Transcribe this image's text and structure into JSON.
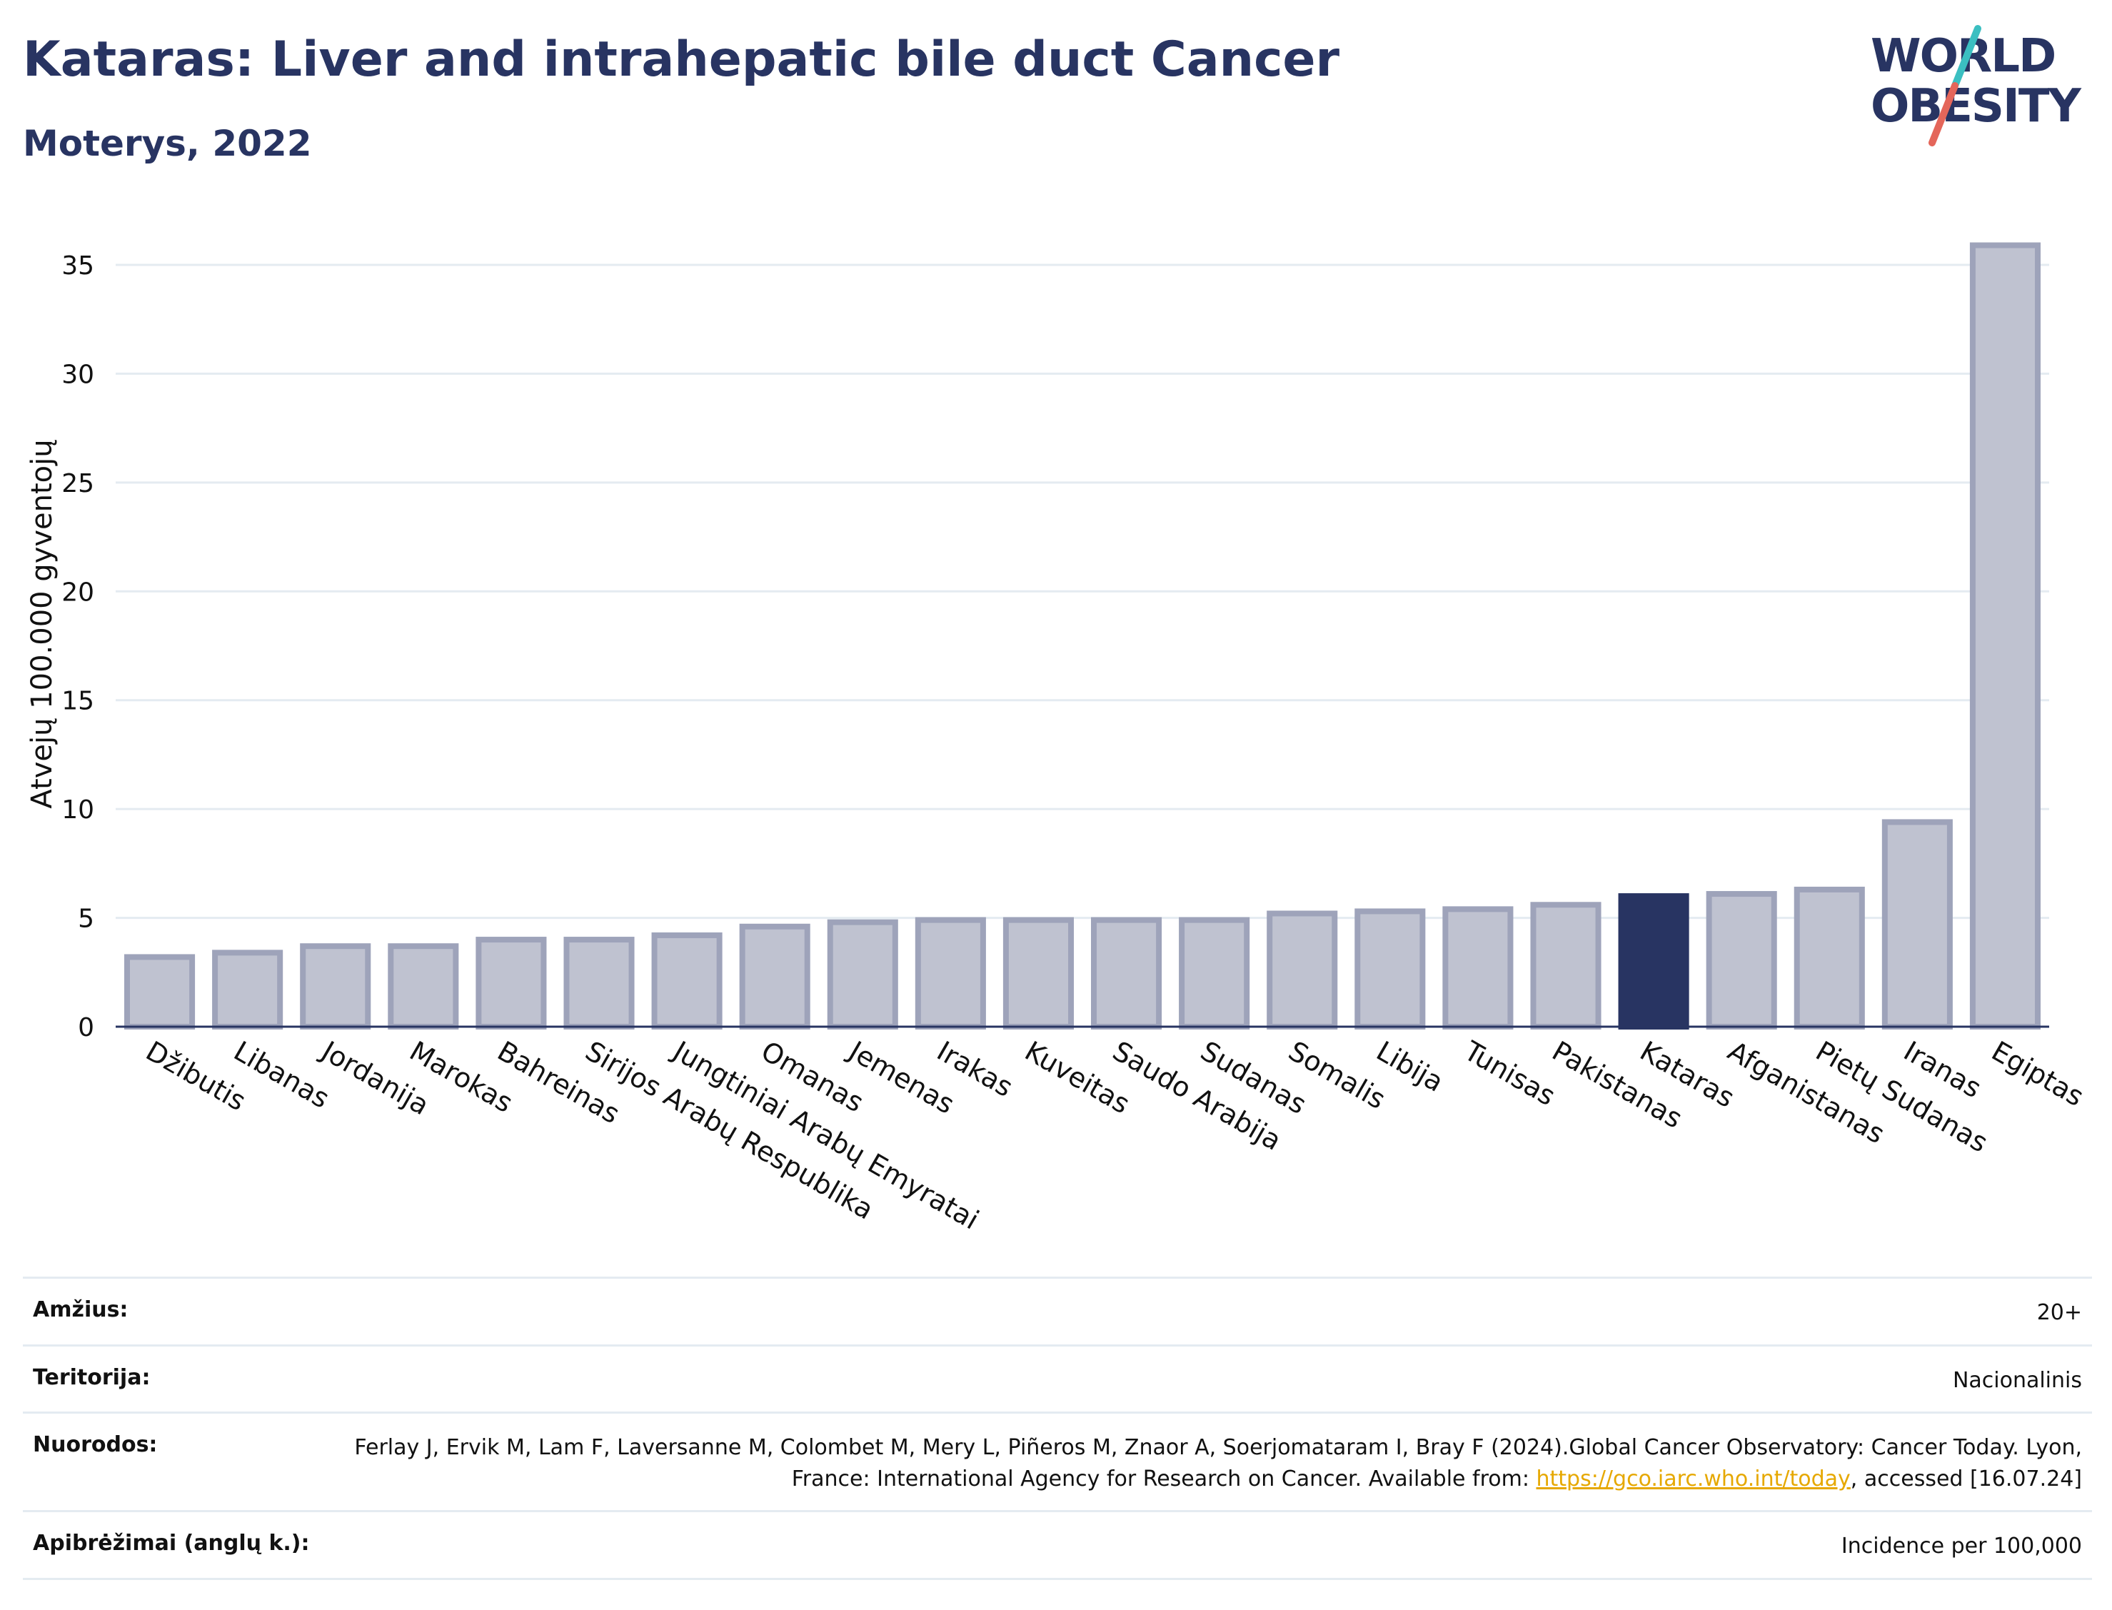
{
  "header": {
    "title": "Kataras: Liver and intrahepatic bile duct Cancer",
    "subtitle": "Moterys, 2022"
  },
  "logo": {
    "line1": "WORLD",
    "line2": "OBESITY",
    "slash_top_color": "#3bbfc1",
    "slash_bottom_color": "#e4665a"
  },
  "chart_data": {
    "type": "bar",
    "ylabel": "Atvejų 100.000 gyventojų",
    "xlabel": "",
    "ylim": [
      0,
      37
    ],
    "yticks": [
      0,
      5,
      10,
      15,
      20,
      25,
      30,
      35
    ],
    "grid": true,
    "categories": [
      "Džibutis",
      "Libanas",
      "Jordanija",
      "Marokas",
      "Bahreinas",
      "Sirijos Arabų Respublika",
      "Jungtiniai Arabų Emyratai",
      "Omanas",
      "Jemenas",
      "Irakas",
      "Kuveitas",
      "Saudo Arabija",
      "Sudanas",
      "Somalis",
      "Libija",
      "Tunisas",
      "Pakistanas",
      "Kataras",
      "Afganistanas",
      "Pietų Sudanas",
      "Iranas",
      "Egiptas"
    ],
    "values": [
      3.2,
      3.4,
      3.7,
      3.7,
      4.0,
      4.0,
      4.2,
      4.6,
      4.8,
      4.9,
      4.9,
      4.9,
      4.9,
      5.2,
      5.3,
      5.4,
      5.6,
      6.0,
      6.1,
      6.3,
      9.4,
      35.9
    ],
    "highlight": "Kataras",
    "colors": {
      "bar": "#bfc2d0",
      "bar_border": "#9ea3ba",
      "highlight": "#283462",
      "grid": "#e4ebf1",
      "axis": "#283462"
    }
  },
  "info": {
    "rows": [
      {
        "label": "Amžius:",
        "value": "20+"
      },
      {
        "label": "Teritorija:",
        "value": "Nacionalinis"
      },
      {
        "label": "Nuorodos:",
        "value_before": "Ferlay J, Ervik M, Lam F, Laversanne M, Colombet M, Mery L, Piñeros M, Znaor A, Soerjomataram I, Bray F (2024).Global Cancer Observatory: Cancer Today. Lyon, France: International Agency for Research on Cancer. Available from: ",
        "link": "https://gco.iarc.who.int/today",
        "value_after": ", accessed [16.07.24]"
      },
      {
        "label": "Apibrėžimai (anglų k.):",
        "value": "Incidence per 100,000"
      }
    ]
  }
}
